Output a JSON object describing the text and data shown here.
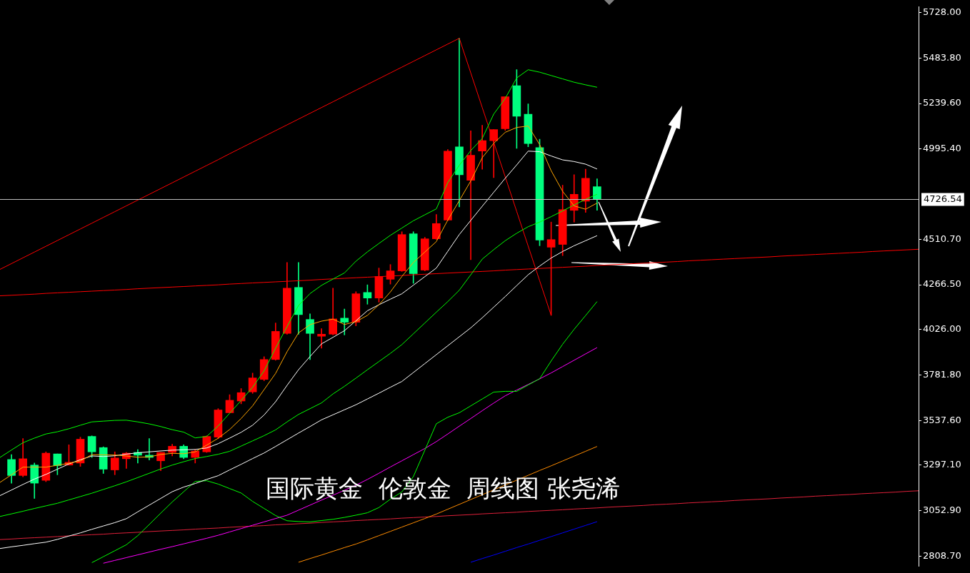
{
  "chart_data": {
    "type": "candlestick",
    "title": "国际黄金  伦敦金  周线图 张尧浠",
    "categories": [
      null,
      null,
      null,
      null,
      null,
      null,
      null,
      null,
      null,
      null,
      null,
      null,
      null,
      null,
      null,
      null,
      null,
      null,
      null,
      null,
      null,
      null,
      null,
      null,
      null,
      null,
      null,
      null,
      null,
      null,
      null,
      null,
      null,
      null,
      null,
      null,
      null,
      null,
      null,
      null,
      null,
      null,
      null,
      null,
      null,
      null,
      null,
      null,
      null,
      null,
      null,
      null,
      null,
      null,
      null,
      null,
      null,
      null,
      null,
      null,
      null,
      null,
      null,
      null,
      null,
      null,
      null,
      null,
      null,
      null,
      null,
      null,
      null,
      null,
      null,
      null,
      null,
      null,
      null,
      null,
      null
    ],
    "ohlc": [
      null,
      [
        3328,
        3354,
        3201,
        3242
      ],
      [
        3242,
        3440,
        3235,
        3332
      ],
      [
        3298,
        3309,
        3119,
        3201
      ],
      [
        3216,
        3369,
        3209,
        3362
      ],
      [
        3358,
        3358,
        3246,
        3295
      ],
      [
        3298,
        3407,
        3298,
        3313
      ],
      [
        3309,
        3448,
        3291,
        3437
      ],
      [
        3452,
        3455,
        3339,
        3369
      ],
      [
        3392,
        3396,
        3253,
        3276
      ],
      [
        3272,
        3369,
        3246,
        3336
      ],
      [
        3332,
        3366,
        3280,
        3362
      ],
      [
        3366,
        3381,
        3309,
        3351
      ],
      [
        3351,
        3440,
        3325,
        3339
      ],
      [
        3321,
        3366,
        3268,
        3366
      ],
      [
        3366,
        3410,
        3347,
        3399
      ],
      [
        3399,
        3407,
        3332,
        3339
      ],
      [
        3339,
        3381,
        3309,
        3373
      ],
      [
        3369,
        3455,
        3366,
        3452
      ],
      [
        3448,
        3601,
        3440,
        3594
      ],
      [
        3579,
        3676,
        3579,
        3646
      ],
      [
        3642,
        3709,
        3627,
        3687
      ],
      [
        3691,
        3792,
        3683,
        3766
      ],
      [
        3758,
        3880,
        3751,
        3865
      ],
      [
        3865,
        4061,
        3861,
        4016
      ],
      [
        4005,
        4386,
        4001,
        4248
      ],
      [
        4252,
        4386,
        4001,
        4106
      ],
      [
        4080,
        4110,
        3865,
        4005
      ],
      [
        3990,
        4031,
        3926,
        4001
      ],
      [
        4001,
        4248,
        3997,
        4083
      ],
      [
        4087,
        4136,
        3997,
        4065
      ],
      [
        4065,
        4229,
        4046,
        4218
      ],
      [
        4225,
        4266,
        4162,
        4195
      ],
      [
        4195,
        4356,
        4173,
        4311
      ],
      [
        4296,
        4375,
        4270,
        4341
      ],
      [
        4341,
        4551,
        4338,
        4536
      ],
      [
        4540,
        4551,
        4274,
        4326
      ],
      [
        4345,
        4521,
        4341,
        4513
      ],
      [
        4513,
        4644,
        4509,
        4595
      ],
      [
        4614,
        4992,
        4610,
        4984
      ],
      [
        5007,
        5590,
        4685,
        4857
      ],
      [
        4827,
        5093,
        4401,
        4962
      ],
      [
        4984,
        5123,
        4887,
        5040
      ],
      [
        5040,
        5100,
        4842,
        5100
      ],
      [
        5104,
        5276,
        5096,
        5276
      ],
      [
        5335,
        5422,
        4999,
        5171
      ],
      [
        5182,
        5238,
        5007,
        5025
      ],
      [
        5003,
        5048,
        4476,
        4506
      ],
      [
        4468,
        4603,
        4102,
        4509
      ],
      [
        4483,
        4801,
        4423,
        4670
      ],
      [
        4666,
        4857,
        4603,
        4752
      ],
      [
        4715,
        4887,
        4655,
        4838
      ],
      [
        4793,
        4835,
        4666,
        4727
      ],
      null,
      null,
      null,
      null,
      null,
      null,
      null,
      null,
      null,
      null,
      null,
      null,
      null,
      null,
      null,
      null,
      null,
      null,
      null,
      null,
      null,
      null,
      null,
      null,
      null,
      null,
      null,
      null
    ],
    "colors": [
      null,
      "#00ff7f",
      "#ff0000",
      "#00ff7f",
      "#ff0000",
      "#00ff7f",
      "#ff0000",
      "#ff0000",
      "#00ff7f",
      "#00ff7f",
      "#ff0000",
      "#ff0000",
      "#00ff7f",
      "#00ff7f",
      "#ff0000",
      "#ff0000",
      "#00ff7f",
      "#ff0000",
      "#ff0000",
      "#ff0000",
      "#ff0000",
      "#ff0000",
      "#ff0000",
      "#ff0000",
      "#ff0000",
      "#ff0000",
      "#00ff7f",
      "#00ff7f",
      "#ff0000",
      "#ff0000",
      "#00ff7f",
      "#ff0000",
      "#00ff7f",
      "#ff0000",
      "#ff0000",
      "#ff0000",
      "#00ff7f",
      "#ff0000",
      "#ff0000",
      "#ff0000",
      "#00ff7f",
      "#ff0000",
      "#ff0000",
      "#ff0000",
      "#ff0000",
      "#00ff7f",
      "#00ff7f",
      "#00ff7f",
      "#ff0000",
      "#ff0000",
      "#ff0000",
      "#ff0000",
      "#00ff7f",
      null,
      null,
      null,
      null,
      null,
      null,
      null,
      null,
      null,
      null,
      null,
      null,
      null,
      null,
      null,
      null,
      null,
      null,
      null,
      null,
      null,
      null,
      null,
      null,
      null,
      null,
      null,
      null
    ],
    "series": [
      {
        "type": "line",
        "color": "#ffa500",
        "values": [
          3205,
          3246,
          3287,
          3287,
          3287,
          3297,
          3308,
          3320,
          3354,
          3353,
          3352,
          3347,
          3340,
          3342,
          3355,
          3361,
          3359,
          3369,
          3405,
          3442,
          3489,
          3548,
          3616,
          3703,
          3790,
          3907,
          4008,
          4052,
          4071,
          4082,
          4053,
          4068,
          4102,
          4159,
          4228,
          4311,
          4386,
          4442,
          4498,
          4614,
          4718,
          4824,
          4949,
          5026,
          5085,
          5111,
          5119,
          5019,
          4879,
          4768,
          4690,
          4672,
          4705,
          null,
          null,
          null,
          null,
          null,
          null,
          null,
          null,
          null,
          null,
          null,
          null,
          null,
          null,
          null,
          null,
          null,
          null,
          null,
          null,
          null,
          null,
          null,
          null,
          null,
          null,
          null,
          null
        ]
      },
      {
        "type": "line",
        "color": "#ffffff",
        "values": [
          3134,
          3164,
          3194,
          3223,
          3248,
          3276,
          3304,
          3327,
          3347,
          3344,
          3348,
          3357,
          3364,
          3369,
          3374,
          3378,
          3380,
          3382,
          3390,
          3413,
          3443,
          3474,
          3512,
          3567,
          3638,
          3726,
          3810,
          3881,
          3949,
          3984,
          4020,
          4073,
          4127,
          4159,
          4189,
          4218,
          4264,
          4310,
          4356,
          4446,
          4536,
          4612,
          4688,
          4763,
          4838,
          4910,
          4984,
          4981,
          4958,
          4937,
          4928,
          4914,
          4888,
          null,
          null,
          null,
          null,
          null,
          null,
          null,
          null,
          null,
          null,
          null,
          null,
          null,
          null,
          null,
          null,
          null,
          null,
          null,
          null,
          null,
          null,
          null,
          null,
          null,
          null,
          null,
          null
        ]
      },
      {
        "type": "line",
        "color": "#00ff00",
        "values": [
          3339,
          3379,
          3418,
          3443,
          3465,
          3477,
          3493,
          3512,
          3530,
          3534,
          3538,
          3539,
          3530,
          3519,
          3505,
          3488,
          3475,
          3444,
          3452,
          3508,
          3576,
          3645,
          3716,
          3804,
          3926,
          4042,
          4155,
          4219,
          4263,
          4297,
          4330,
          4393,
          4443,
          4488,
          4532,
          4571,
          4610,
          4642,
          4674,
          4815,
          4908,
          4987,
          5052,
          5183,
          5267,
          5377,
          5421,
          5408,
          5390,
          5372,
          5354,
          5340,
          5327,
          null,
          null,
          null,
          null,
          null,
          null,
          null,
          null,
          null,
          null,
          null,
          null,
          null,
          null,
          null,
          null,
          null,
          null,
          null,
          null,
          null,
          null,
          null,
          null,
          null,
          null,
          null,
          null
        ]
      },
      {
        "type": "line",
        "color": "#00ff00",
        "values": [
          3022,
          3036,
          3050,
          3065,
          3079,
          3093,
          3111,
          3129,
          3147,
          3167,
          3187,
          3208,
          3231,
          3254,
          3277,
          3298,
          3316,
          3333,
          3344,
          3356,
          3372,
          3400,
          3428,
          3456,
          3487,
          3530,
          3570,
          3601,
          3632,
          3680,
          3721,
          3765,
          3810,
          3854,
          3898,
          3945,
          4003,
          4061,
          4119,
          4176,
          4237,
          4320,
          4404,
          4455,
          4503,
          4543,
          4578,
          4603,
          4632,
          4663,
          4695,
          4725,
          4752,
          null,
          null,
          null,
          null,
          null,
          null,
          null,
          null,
          null,
          null,
          null,
          null,
          null,
          null,
          null,
          null,
          null,
          null,
          null,
          null,
          null,
          null,
          null,
          null,
          null,
          null,
          null,
          null
        ]
      },
      {
        "type": "line",
        "color": "#ffffff",
        "values": [
          2850,
          2859,
          2867,
          2876,
          2884,
          2899,
          2917,
          2934,
          2953,
          2971,
          2989,
          3010,
          3047,
          3083,
          3119,
          3155,
          3180,
          3199,
          3221,
          3241,
          3272,
          3302,
          3333,
          3363,
          3398,
          3434,
          3470,
          3505,
          3541,
          3568,
          3595,
          3622,
          3653,
          3684,
          3716,
          3747,
          3795,
          3843,
          3891,
          3939,
          3987,
          4035,
          4089,
          4146,
          4203,
          4262,
          4320,
          4367,
          4410,
          4445,
          4476,
          4503,
          4530,
          null,
          null,
          null,
          null,
          null,
          null,
          null,
          null,
          null,
          null,
          null,
          null,
          null,
          null,
          null,
          null,
          null,
          null,
          null,
          null,
          null,
          null,
          null,
          null,
          null,
          null,
          null,
          null
        ]
      },
      {
        "type": "line",
        "color": "#00ff00",
        "values": [
          null,
          null,
          null,
          null,
          null,
          null,
          null,
          null,
          2774,
          2806,
          2838,
          2870,
          2919,
          2979,
          3040,
          3100,
          3155,
          3210,
          3214,
          3196,
          3172,
          3148,
          3103,
          3065,
          3027,
          2999,
          2995,
          2993,
          3000,
          3007,
          3017,
          3029,
          3042,
          3070,
          3115,
          3154,
          3236,
          3378,
          3520,
          3555,
          3579,
          3616,
          3653,
          3690,
          3694,
          3694,
          3728,
          3762,
          3857,
          3947,
          4027,
          4101,
          4176,
          null,
          null,
          null,
          null,
          null,
          null,
          null,
          null,
          null,
          null,
          null,
          null,
          null,
          null,
          null,
          null,
          null,
          null,
          null,
          null,
          null,
          null,
          null,
          null,
          null,
          null,
          null,
          null
        ]
      },
      {
        "type": "line",
        "color": "#ff00ff",
        "values": [
          null,
          null,
          null,
          null,
          null,
          null,
          null,
          null,
          null,
          2771,
          2786,
          2801,
          2816,
          2831,
          2846,
          2860,
          2875,
          2890,
          2905,
          2921,
          2939,
          2957,
          2975,
          2993,
          3011,
          3029,
          3056,
          3083,
          3110,
          3136,
          3163,
          3190,
          3221,
          3254,
          3288,
          3321,
          3354,
          3387,
          3424,
          3465,
          3507,
          3548,
          3590,
          3631,
          3670,
          3701,
          3731,
          3761,
          3793,
          3827,
          3861,
          3895,
          3929,
          null,
          null,
          null,
          null,
          null,
          null,
          null,
          null,
          null,
          null,
          null,
          null,
          null,
          null,
          null,
          null,
          null,
          null,
          null,
          null,
          null,
          null,
          null,
          null,
          null,
          null,
          null,
          null
        ]
      },
      {
        "type": "line",
        "color": "#ff8c00",
        "values": [
          null,
          null,
          null,
          null,
          null,
          null,
          null,
          null,
          null,
          null,
          null,
          null,
          null,
          null,
          null,
          null,
          null,
          null,
          null,
          null,
          null,
          null,
          null,
          null,
          null,
          null,
          2776,
          2796,
          2815,
          2835,
          2855,
          2874,
          2896,
          2919,
          2942,
          2965,
          2988,
          3011,
          3035,
          3061,
          3087,
          3113,
          3139,
          3165,
          3191,
          3217,
          3243,
          3269,
          3294,
          3320,
          3346,
          3372,
          3398,
          null,
          null,
          null,
          null,
          null,
          null,
          null,
          null,
          null,
          null,
          null,
          null,
          null,
          null,
          null,
          null,
          null,
          null,
          null,
          null,
          null,
          null,
          null,
          null,
          null,
          null,
          null,
          null
        ]
      },
      {
        "type": "line",
        "color": "#0000ff",
        "values": [
          null,
          null,
          null,
          null,
          null,
          null,
          null,
          null,
          null,
          null,
          null,
          null,
          null,
          null,
          null,
          null,
          null,
          null,
          null,
          null,
          null,
          null,
          null,
          null,
          null,
          null,
          null,
          null,
          null,
          null,
          null,
          null,
          null,
          null,
          null,
          null,
          null,
          null,
          null,
          null,
          null,
          2776,
          2796,
          2815,
          2835,
          2855,
          2874,
          2894,
          2914,
          2934,
          2954,
          2974,
          2994,
          null,
          null,
          null,
          null,
          null,
          null,
          null,
          null,
          null,
          null,
          null,
          null,
          null,
          null,
          null,
          null,
          null,
          null,
          null,
          null,
          null,
          null,
          null,
          null,
          null,
          null,
          null,
          null
        ]
      },
      {
        "type": "line",
        "color": "#ff0000",
        "values": [
          4207,
          4210,
          4213,
          4216,
          4220,
          4223,
          4226,
          4229,
          4232,
          4235,
          4238,
          4241,
          4245,
          4248,
          4251,
          4254,
          4257,
          4260,
          4263,
          4266,
          4270,
          4273,
          4276,
          4279,
          4282,
          4285,
          4288,
          4291,
          4295,
          4298,
          4301,
          4304,
          4307,
          4310,
          4313,
          4316,
          4320,
          4323,
          4326,
          4329,
          4332,
          4335,
          4338,
          4341,
          4345,
          4348,
          4351,
          4354,
          4357,
          4360,
          4363,
          4366,
          4370,
          4373,
          4376,
          4379,
          4382,
          4385,
          4388,
          4391,
          4395,
          4398,
          4401,
          4404,
          4407,
          4410,
          4413,
          4416,
          4420,
          4423,
          4426,
          4429,
          4432,
          4435,
          4438,
          4441,
          4445,
          4448,
          4451,
          4454,
          4457
        ]
      },
      {
        "type": "line",
        "color": "#e0203a",
        "values": [
          2898,
          2901,
          2905,
          2908,
          2911,
          2914,
          2918,
          2921,
          2924,
          2927,
          2931,
          2934,
          2937,
          2941,
          2944,
          2947,
          2950,
          2954,
          2957,
          2960,
          2964,
          2967,
          2970,
          2973,
          2977,
          2980,
          2983,
          2986,
          2990,
          2993,
          2996,
          3000,
          3003,
          3006,
          3009,
          3013,
          3016,
          3019,
          3022,
          3026,
          3029,
          3032,
          3036,
          3039,
          3042,
          3045,
          3049,
          3052,
          3055,
          3058,
          3062,
          3065,
          3068,
          3072,
          3075,
          3078,
          3081,
          3085,
          3088,
          3091,
          3095,
          3098,
          3101,
          3104,
          3108,
          3111,
          3114,
          3117,
          3121,
          3124,
          3127,
          3131,
          3134,
          3137,
          3140,
          3144,
          3147,
          3150,
          3153,
          3157,
          3160
        ]
      },
      {
        "type": "line",
        "color": "#ff0000",
        "values": [
          4349,
          4380,
          4411,
          4442,
          4473,
          4504,
          4535,
          4566,
          4597,
          4628,
          4659,
          4690,
          4721,
          4752,
          4783,
          4814,
          4845,
          4876,
          4907,
          4938,
          4970,
          5001,
          5032,
          5063,
          5094,
          5125,
          5156,
          5187,
          5218,
          5249,
          5280,
          5311,
          5342,
          5373,
          5404,
          5435,
          5466,
          5497,
          5528,
          5559,
          5590,
          5404,
          5218,
          5032,
          4846,
          4660,
          4474,
          4288,
          4102,
          null,
          null,
          null,
          null,
          null,
          null,
          null,
          null,
          null,
          null,
          null,
          null,
          null,
          null,
          null,
          null,
          null,
          null,
          null,
          null,
          null,
          null,
          null,
          null,
          null,
          null,
          null,
          null,
          null,
          null,
          null,
          null
        ]
      }
    ],
    "ref_lines": [
      {
        "axis": "y",
        "value": 4726.54,
        "label": "4726.54",
        "color": "#c0c0c0"
      }
    ],
    "ylim": [
      2756,
      5758
    ],
    "yticks": [
      {
        "value": 5728,
        "label": "5728.00"
      },
      {
        "value": 5483.8,
        "label": "5483.80"
      },
      {
        "value": 5239.6,
        "label": "5239.60"
      },
      {
        "value": 4995.4,
        "label": "4995.40"
      },
      {
        "value": 4510.7,
        "label": "4510.70"
      },
      {
        "value": 4266.5,
        "label": "4266.50"
      },
      {
        "value": 4026,
        "label": "4026.00"
      },
      {
        "value": 3781.8,
        "label": "3781.80"
      },
      {
        "value": 3537.6,
        "label": "3537.60"
      },
      {
        "value": 3297.1,
        "label": "3297.10"
      },
      {
        "value": 3052.9,
        "label": "3052.90"
      },
      {
        "value": 2808.7,
        "label": "2808.70"
      }
    ],
    "tick_labels": "y"
  }
}
